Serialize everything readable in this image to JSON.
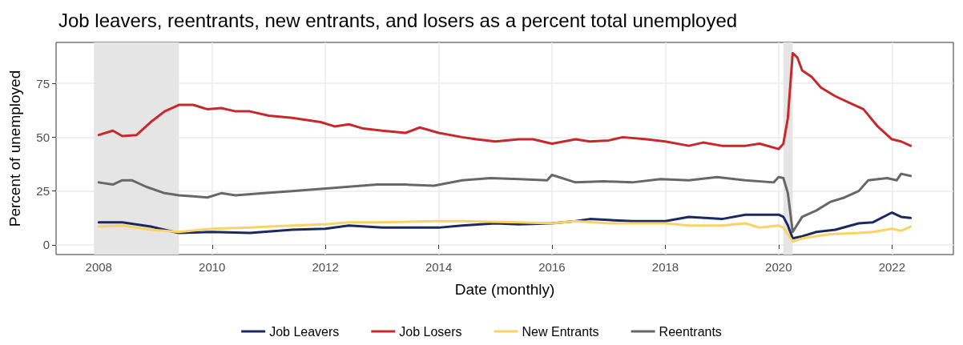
{
  "chart_data": {
    "type": "line",
    "title": "Job leavers, reentrants, new entrants, and losers as a percent total unemployed",
    "xlabel": "Date (monthly)",
    "ylabel": "Percent of unemployed",
    "xlim": [
      "2007-04",
      "2023-02"
    ],
    "xticks": [
      "2008",
      "2010",
      "2012",
      "2014",
      "2016",
      "2018",
      "2020",
      "2022"
    ],
    "ylim": [
      -4.5,
      94
    ],
    "yticks": [
      0,
      25,
      50,
      75
    ],
    "grid": true,
    "legend": "bottom",
    "line_style": "solid",
    "marker": "none",
    "bands": [
      {
        "axis": "x",
        "from": "2007-12",
        "to": "2009-06",
        "color": "#e5e5e5"
      },
      {
        "axis": "x",
        "from": "2020-02",
        "to": "2020-04",
        "color": "#e5e5e5"
      }
    ],
    "series": [
      {
        "name": "Job Leavers",
        "color": "#1b2a5c",
        "x": [
          "2008-01",
          "2008-06",
          "2008-12",
          "2009-06",
          "2010-01",
          "2010-09",
          "2011-06",
          "2012-01",
          "2012-06",
          "2013-01",
          "2013-06",
          "2014-01",
          "2014-06",
          "2015-01",
          "2015-06",
          "2016-01",
          "2016-06",
          "2016-09",
          "2017-06",
          "2018-01",
          "2018-06",
          "2019-01",
          "2019-06",
          "2020-01",
          "2020-02",
          "2020-03",
          "2020-04",
          "2020-06",
          "2020-09",
          "2021-01",
          "2021-06",
          "2021-09",
          "2022-01",
          "2022-03",
          "2022-05"
        ],
        "values": [
          10.5,
          10.5,
          8.5,
          5.5,
          6,
          5.5,
          7,
          7.5,
          9,
          8,
          8,
          8,
          9,
          10,
          9.5,
          10,
          11,
          12,
          11,
          11,
          13,
          12,
          14,
          14,
          13,
          9,
          3,
          4,
          6,
          7,
          10,
          10.5,
          15,
          13,
          12.5
        ]
      },
      {
        "name": "Job Losers",
        "color": "#c8282b",
        "x": [
          "2008-01",
          "2008-04",
          "2008-06",
          "2008-09",
          "2008-12",
          "2009-03",
          "2009-06",
          "2009-09",
          "2009-12",
          "2010-03",
          "2010-06",
          "2010-09",
          "2011-01",
          "2011-06",
          "2011-12",
          "2012-03",
          "2012-06",
          "2012-09",
          "2013-01",
          "2013-06",
          "2013-09",
          "2014-01",
          "2014-06",
          "2014-09",
          "2015-01",
          "2015-06",
          "2015-09",
          "2016-01",
          "2016-06",
          "2016-09",
          "2017-01",
          "2017-04",
          "2017-09",
          "2018-01",
          "2018-06",
          "2018-09",
          "2019-01",
          "2019-06",
          "2019-09",
          "2020-01",
          "2020-02",
          "2020-03",
          "2020-04",
          "2020-05",
          "2020-06",
          "2020-08",
          "2020-10",
          "2021-01",
          "2021-04",
          "2021-07",
          "2021-10",
          "2022-01",
          "2022-03",
          "2022-05"
        ],
        "values": [
          51,
          53,
          50.5,
          51,
          57,
          62,
          65,
          65,
          63,
          63.5,
          62,
          62,
          60,
          59,
          57,
          55,
          56,
          54,
          53,
          52,
          54.5,
          52,
          50,
          49,
          48,
          49,
          49,
          47,
          49,
          48,
          48.5,
          50,
          49,
          48,
          46,
          47.5,
          46,
          46,
          47,
          44.5,
          47,
          59,
          89,
          87,
          81,
          78,
          73,
          69,
          66,
          63,
          55,
          49,
          48,
          46
        ]
      },
      {
        "name": "New Entrants",
        "color": "#fdd264",
        "x": [
          "2008-01",
          "2008-06",
          "2008-12",
          "2009-06",
          "2010-01",
          "2010-09",
          "2011-06",
          "2012-01",
          "2012-06",
          "2013-01",
          "2014-01",
          "2014-06",
          "2015-06",
          "2016-01",
          "2016-06",
          "2017-01",
          "2018-01",
          "2018-06",
          "2019-01",
          "2019-06",
          "2019-09",
          "2020-01",
          "2020-02",
          "2020-03",
          "2020-04",
          "2020-06",
          "2020-12",
          "2021-06",
          "2021-09",
          "2022-01",
          "2022-03",
          "2022-05"
        ],
        "values": [
          8.5,
          9,
          7,
          6,
          7.5,
          8,
          9,
          9.5,
          10.5,
          10.5,
          11,
          11,
          10.5,
          10,
          11,
          10,
          10,
          9,
          9,
          10,
          8,
          9,
          8,
          5,
          1.5,
          3,
          5,
          5.5,
          6,
          7.5,
          6.5,
          8.5
        ]
      },
      {
        "name": "Reentrants",
        "color": "#676767",
        "x": [
          "2008-01",
          "2008-04",
          "2008-06",
          "2008-08",
          "2008-11",
          "2009-03",
          "2009-06",
          "2009-09",
          "2009-12",
          "2010-03",
          "2010-06",
          "2010-12",
          "2011-06",
          "2011-12",
          "2012-06",
          "2012-12",
          "2013-06",
          "2013-12",
          "2014-06",
          "2014-12",
          "2015-06",
          "2015-12",
          "2016-01",
          "2016-06",
          "2016-12",
          "2017-06",
          "2017-12",
          "2018-06",
          "2018-12",
          "2019-06",
          "2019-12",
          "2020-01",
          "2020-02",
          "2020-03",
          "2020-04",
          "2020-06",
          "2020-09",
          "2020-12",
          "2021-03",
          "2021-06",
          "2021-08",
          "2021-12",
          "2022-02",
          "2022-03",
          "2022-05"
        ],
        "values": [
          29,
          28,
          30,
          30,
          27,
          24,
          23,
          22.5,
          22,
          24,
          23,
          24,
          25,
          26,
          27,
          28,
          28,
          27.5,
          30,
          31,
          30.5,
          30,
          32.5,
          29,
          29.5,
          29,
          30.5,
          30,
          31.5,
          30,
          29,
          31.5,
          31,
          24,
          6,
          13,
          16,
          20,
          22,
          25,
          30,
          31,
          30,
          33,
          32
        ]
      }
    ]
  }
}
